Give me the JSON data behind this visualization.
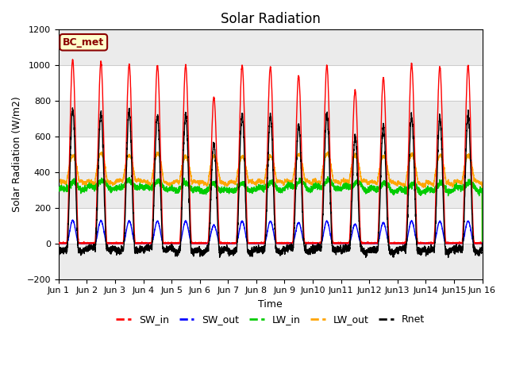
{
  "title": "Solar Radiation",
  "ylabel": "Solar Radiation (W/m2)",
  "xlabel": "Time",
  "ylim": [
    -200,
    1200
  ],
  "xlim": [
    0,
    15
  ],
  "x_tick_labels": [
    "Jun 1",
    "Jun 2",
    "Jun 3",
    "Jun 4",
    "Jun 5",
    "Jun 6",
    "Jun 7",
    "Jun 8",
    "Jun 9",
    "Jun10",
    "Jun11",
    "Jun12",
    "Jun13",
    "Jun14",
    "Jun15",
    "Jun 16"
  ],
  "x_tick_positions": [
    0,
    1,
    2,
    3,
    4,
    5,
    6,
    7,
    8,
    9,
    10,
    11,
    12,
    13,
    14,
    15
  ],
  "station_label": "BC_met",
  "colors": {
    "SW_in": "#FF0000",
    "SW_out": "#0000FF",
    "LW_in": "#00CC00",
    "LW_out": "#FFA500",
    "Rnet": "#000000"
  },
  "yticks": [
    -200,
    0,
    200,
    400,
    600,
    800,
    1000,
    1200
  ],
  "sw_in_peaks": [
    1030,
    1020,
    1005,
    1000,
    1000,
    820,
    1000,
    990,
    940,
    1000,
    860,
    930,
    1010,
    990,
    1000
  ],
  "n_days": 15,
  "samples_per_day": 288
}
